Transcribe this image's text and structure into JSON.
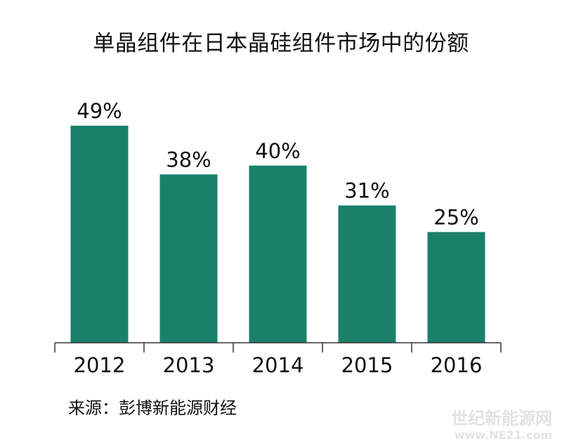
{
  "chart_data": {
    "type": "bar",
    "title": "单晶组件在日本晶硅组件市场中的份额",
    "categories": [
      "2012",
      "2013",
      "2014",
      "2015",
      "2016"
    ],
    "values": [
      49,
      38,
      40,
      31,
      25
    ],
    "data_labels": [
      "49%",
      "38%",
      "40%",
      "31%",
      "25%"
    ],
    "unit": "%",
    "ylim": [
      0,
      60
    ],
    "xlabel": "",
    "ylabel": "",
    "grid": false,
    "legend": "none",
    "bar_color": "#1a8069",
    "axis_color": "#333333"
  },
  "source": "来源：彭博新能源财经",
  "watermark": {
    "line1": "世纪新能源网",
    "line2": "www.NE21.com"
  }
}
